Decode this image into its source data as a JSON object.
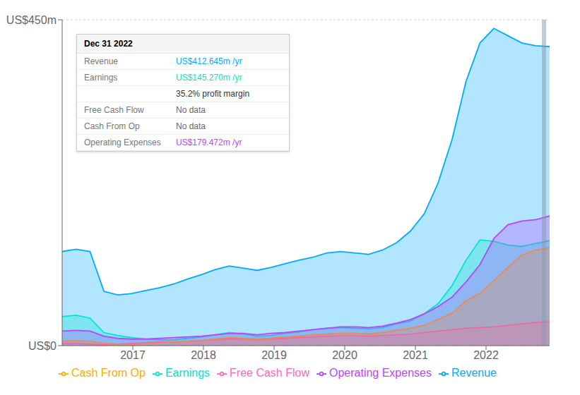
{
  "chart_data": {
    "type": "area",
    "x": [
      2016,
      2016.197142857143,
      2016.394285714286,
      2016.591428571429,
      2016.788571428571,
      2016.985714285714,
      2017.182857142857,
      2017.38,
      2017.577142857143,
      2017.774285714286,
      2017.971428571429,
      2018.168571428571,
      2018.365714285714,
      2018.562857142857,
      2018.76,
      2018.957142857143,
      2019.154285714286,
      2019.351428571429,
      2019.548571428571,
      2019.745714285714,
      2019.942857142857,
      2020.14,
      2020.337142857143,
      2020.534285714286,
      2020.731428571429,
      2020.928571428571,
      2021.125714285714,
      2021.322857142857,
      2021.52,
      2021.717142857143,
      2021.914285714286,
      2022.111428571429,
      2022.308571428571,
      2022.505714285714,
      2022.702857142857,
      2022.9
    ],
    "series": [
      {
        "name": "Revenue",
        "color": "#00aaff",
        "values": [
          130,
          133,
          130,
          75,
          70,
          72,
          76,
          80,
          85,
          92,
          98,
          105,
          110,
          107,
          104,
          108,
          113,
          118,
          122,
          128,
          130,
          128,
          126,
          132,
          142,
          158,
          182,
          225,
          285,
          365,
          418,
          438,
          428,
          418,
          414,
          413
        ]
      },
      {
        "name": "Earnings",
        "color": "#00e5cc",
        "values": [
          40,
          42,
          38,
          18,
          14,
          11,
          9,
          8,
          8,
          10,
          12,
          15,
          18,
          16,
          13,
          14,
          17,
          19,
          22,
          24,
          25,
          24,
          23,
          25,
          30,
          34,
          44,
          58,
          83,
          118,
          146,
          144,
          139,
          137,
          141,
          145
        ]
      },
      {
        "name": "Free Cash Flow",
        "color": "#ff69b4",
        "values": [
          3,
          3,
          2,
          1,
          2,
          3,
          4,
          5,
          5,
          6,
          7,
          8,
          9,
          9,
          8,
          9,
          10,
          11,
          12,
          13,
          14,
          14,
          13,
          14,
          15,
          16,
          18,
          20,
          22,
          24,
          25,
          26,
          28,
          30,
          32,
          33
        ]
      },
      {
        "name": "Cash From Op",
        "color": "#ffaa00",
        "values": [
          6,
          7,
          6,
          3,
          2,
          2,
          3,
          4,
          5,
          6,
          7,
          9,
          11,
          10,
          9,
          10,
          12,
          13,
          15,
          16,
          17,
          17,
          16,
          18,
          21,
          24,
          28,
          36,
          45,
          62,
          72,
          90,
          108,
          125,
          132,
          135
        ]
      },
      {
        "name": "Operating Expenses",
        "color": "#bb44ff",
        "values": [
          20,
          21,
          20,
          13,
          10,
          9,
          9,
          10,
          11,
          12,
          13,
          15,
          17,
          17,
          15,
          17,
          18,
          20,
          22,
          24,
          26,
          26,
          25,
          27,
          31,
          36,
          44,
          54,
          67,
          88,
          112,
          148,
          167,
          172,
          174,
          179
        ]
      }
    ],
    "xlim": [
      2016,
      2022.9
    ],
    "xticks": [
      2017,
      2018,
      2019,
      2020,
      2021,
      2022
    ],
    "ylim": [
      0,
      450
    ],
    "yticks": [
      {
        "value": 0,
        "label": "US$0"
      },
      {
        "value": 450,
        "label": "US$450m"
      }
    ],
    "grid": true,
    "legend": "bottom",
    "annotations": [
      {
        "x": 2022.82,
        "title": "Dec 31 2022",
        "rows": [
          {
            "label": "Revenue",
            "value": "US$412.645m /yr",
            "color": "#00aaff"
          },
          {
            "label": "Earnings",
            "value": "US$145.270m /yr",
            "color": "#00e5cc"
          },
          {
            "value": "35.2% profit margin"
          },
          {
            "label": "Free Cash Flow",
            "value": "No data",
            "color": "#666677"
          },
          {
            "label": "Cash From Op",
            "value": "No data",
            "color": "#666677"
          },
          {
            "label": "Operating Expenses",
            "value": "US$179.472m /yr",
            "color": "#bb44ff"
          }
        ]
      }
    ]
  }
}
